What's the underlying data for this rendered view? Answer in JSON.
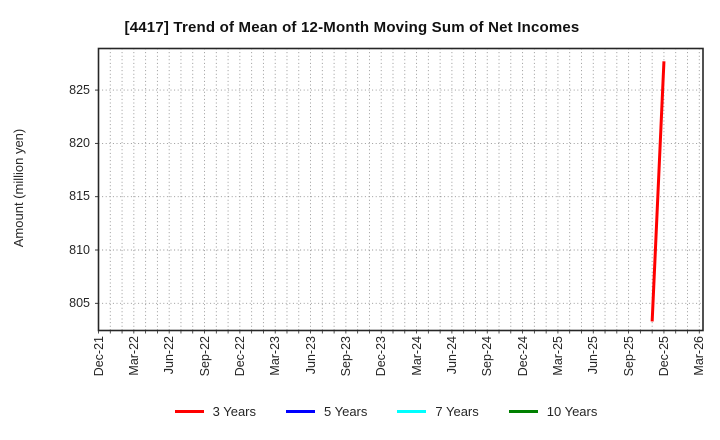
{
  "chart_data": {
    "type": "line",
    "title": "[4417]  Trend of Mean of 12-Month Moving Sum of Net Incomes",
    "ylabel": "Amount (million yen)",
    "xlabel": "",
    "x_tick_labels": [
      "Dec-21",
      "Mar-22",
      "Jun-22",
      "Sep-22",
      "Dec-22",
      "Mar-23",
      "Jun-23",
      "Sep-23",
      "Dec-23",
      "Mar-24",
      "Jun-24",
      "Sep-24",
      "Dec-24",
      "Mar-25",
      "Jun-25",
      "Sep-25",
      "Dec-25",
      "Mar-26"
    ],
    "months_per_tick": 3,
    "x_total_months": 51,
    "y_ticks": [
      805,
      810,
      815,
      820,
      825
    ],
    "ylim": [
      802.45,
      828.9
    ],
    "grid": {
      "style": "dotted",
      "color": "#8f8f8f",
      "vertical": "monthly",
      "horizontal": "at y ticks"
    },
    "frame_color": "#262626",
    "legend_position": "bottom",
    "series": [
      {
        "name": "3 Years",
        "color": "#ff0000",
        "points": [
          {
            "month": "Nov-25",
            "month_index": 47,
            "value": 803.3
          },
          {
            "month": "Dec-25",
            "month_index": 48,
            "value": 827.7
          }
        ]
      },
      {
        "name": "5 Years",
        "color": "#0000ff",
        "points": []
      },
      {
        "name": "7 Years",
        "color": "#00ffff",
        "points": []
      },
      {
        "name": "10 Years",
        "color": "#008000",
        "points": []
      }
    ]
  }
}
